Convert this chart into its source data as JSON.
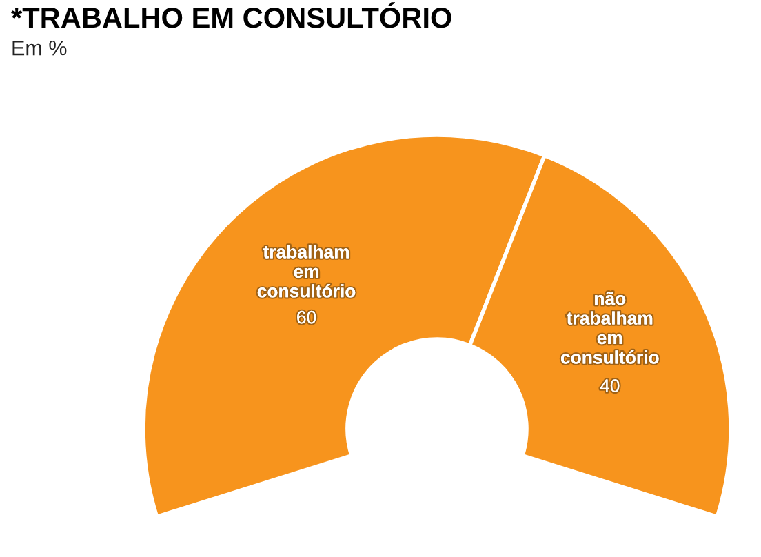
{
  "chart_data": {
    "type": "donut",
    "title": "*TRABALHO EM CONSULTÓRIO",
    "subtitle": "Em %",
    "categories": [
      "trabalham em consultório",
      "não trabalham em consultório"
    ],
    "values": [
      60,
      40
    ],
    "colors": [
      "#f7941d",
      "#f7941d"
    ],
    "data_labels": true
  }
}
